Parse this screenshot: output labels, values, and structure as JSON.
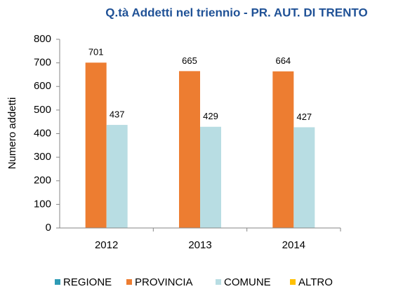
{
  "chart_data": {
    "type": "bar",
    "title": "Q.tà Addetti nel triennio - PR. AUT. DI TRENTO",
    "y_label": "Numero addetti",
    "categories": [
      "2012",
      "2013",
      "2014"
    ],
    "series": [
      {
        "name": "REGIONE",
        "color": "#2e9bb5",
        "values": [
          null,
          null,
          null
        ]
      },
      {
        "name": "PROVINCIA",
        "color": "#ed7d31",
        "values": [
          701,
          665,
          664
        ]
      },
      {
        "name": "COMUNE",
        "color": "#b8dde3",
        "values": [
          437,
          429,
          427
        ]
      },
      {
        "name": "ALTRO",
        "color": "#ffc000",
        "values": [
          null,
          null,
          null
        ]
      }
    ],
    "ylim": [
      0,
      800
    ],
    "yticks": [
      0,
      100,
      200,
      300,
      400,
      500,
      600,
      700,
      800
    ],
    "legend": "bottom"
  }
}
